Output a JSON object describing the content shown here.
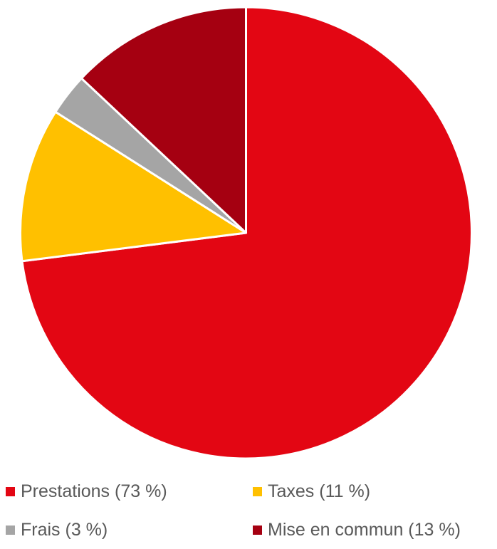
{
  "chart_data": {
    "type": "pie",
    "start_angle_deg": 0,
    "direction": "clockwise",
    "grid": false,
    "legend_position": "bottom",
    "series": [
      {
        "slices": [
          {
            "label": "Prestations (73 %)",
            "value": 73,
            "color": "#E30613"
          },
          {
            "label": "Taxes (11 %)",
            "value": 11,
            "color": "#FFC000"
          },
          {
            "label": "Frais (3 %)",
            "value": 3,
            "color": "#A5A5A5"
          },
          {
            "label": "Mise en commun (13 %)",
            "value": 13,
            "color": "#A50011"
          }
        ]
      }
    ]
  }
}
